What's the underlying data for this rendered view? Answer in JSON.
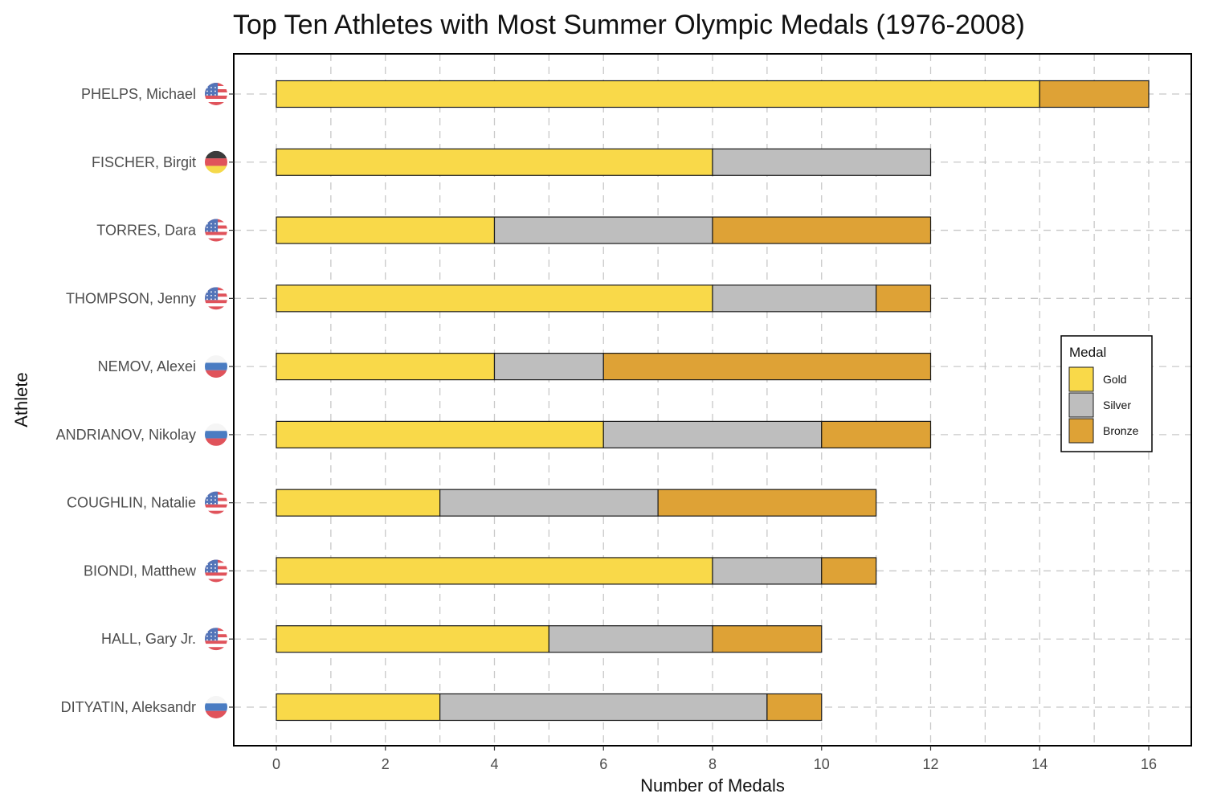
{
  "title": "Top Ten Athletes with Most Summer Olympic Medals (1976-2008)",
  "chart_data": {
    "type": "bar",
    "orientation": "horizontal",
    "stacked": true,
    "title": "Top Ten Athletes with Most Summer Olympic Medals (1976-2008)",
    "xlabel": "Number of Medals",
    "ylabel": "Athlete",
    "xlim": [
      0,
      16
    ],
    "x_ticks": [
      0,
      2,
      4,
      6,
      8,
      10,
      12,
      14,
      16
    ],
    "grid": true,
    "legend": {
      "title": "Medal",
      "position": "right"
    },
    "categories": [
      "PHELPS, Michael",
      "FISCHER, Birgit",
      "TORRES, Dara",
      "THOMPSON, Jenny",
      "NEMOV, Alexei",
      "ANDRIANOV, Nikolay",
      "COUGHLIN, Natalie",
      "BIONDI, Matthew",
      "HALL, Gary Jr.",
      "DITYATIN, Aleksandr"
    ],
    "flags": [
      "usa-flag-icon",
      "germany-flag-icon",
      "usa-flag-icon",
      "usa-flag-icon",
      "russia-flag-icon",
      "russia-flag-icon",
      "usa-flag-icon",
      "usa-flag-icon",
      "usa-flag-icon",
      "russia-flag-icon"
    ],
    "series": [
      {
        "name": "Gold",
        "color": "#F9D949",
        "values": [
          14,
          8,
          4,
          8,
          4,
          6,
          3,
          8,
          5,
          3
        ]
      },
      {
        "name": "Silver",
        "color": "#BEBEBE",
        "values": [
          0,
          4,
          4,
          3,
          2,
          4,
          4,
          2,
          3,
          6
        ]
      },
      {
        "name": "Bronze",
        "color": "#DEA236",
        "values": [
          2,
          0,
          4,
          1,
          6,
          2,
          4,
          1,
          2,
          1
        ]
      }
    ]
  }
}
